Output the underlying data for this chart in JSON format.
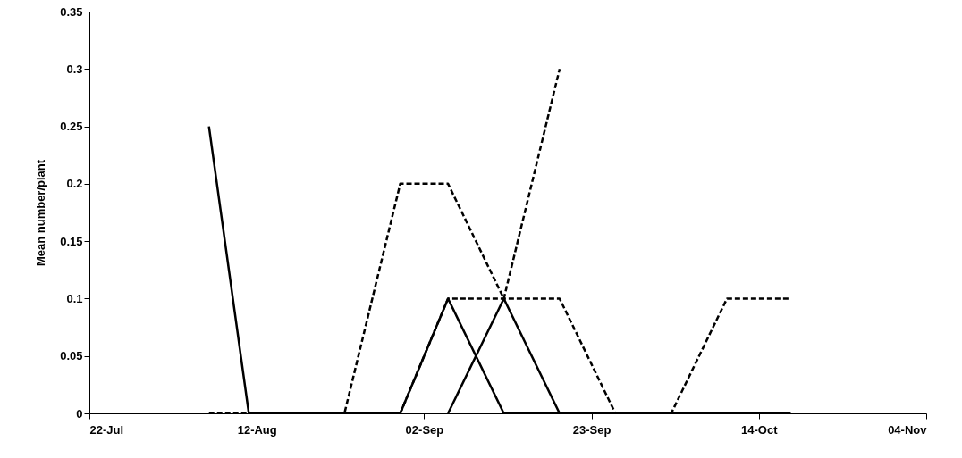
{
  "chart_data": {
    "type": "line",
    "ylabel": "Mean number/plant",
    "xlim": [
      "--07-22",
      "--11-04"
    ],
    "xticks": [
      {
        "value": "--07-22",
        "label": "22-Jul"
      },
      {
        "value": "--08-12",
        "label": "12-Aug"
      },
      {
        "value": "--09-02",
        "label": "02-Sep"
      },
      {
        "value": "--09-23",
        "label": "23-Sep"
      },
      {
        "value": "--10-14",
        "label": "14-Oct"
      },
      {
        "value": "--11-04",
        "label": "04-Nov"
      }
    ],
    "ylim": [
      0,
      0.35
    ],
    "yticks": [
      0,
      0.05,
      0.1,
      0.15,
      0.2,
      0.25,
      0.3,
      0.35
    ],
    "grid": false,
    "marker": "none",
    "series": [
      {
        "color": "#000000",
        "line_style": "solid",
        "x": [
          "--08-06",
          "--08-11",
          "--08-18",
          "--08-23",
          "--08-30",
          "--09-05",
          "--09-12",
          "--09-19",
          "--09-26",
          "--10-03",
          "--10-10",
          "--10-18"
        ],
        "values": [
          0.25,
          0,
          0,
          0,
          0,
          0.1,
          0,
          0,
          0,
          0,
          0,
          0
        ]
      },
      {
        "color": "#000000",
        "line_style": "solid",
        "x": [
          "--09-05",
          "--09-12",
          "--09-19"
        ],
        "values": [
          0,
          0.1,
          0
        ]
      },
      {
        "color": "#000000",
        "line_style": "dashed",
        "x": [
          "--08-06",
          "--08-11",
          "--08-18",
          "--08-23",
          "--08-30",
          "--09-05",
          "--09-12",
          "--09-19"
        ],
        "values": [
          0,
          0,
          0,
          0,
          0.2,
          0.2,
          0.1,
          0.3
        ]
      },
      {
        "color": "#000000",
        "line_style": "dashed",
        "x": [
          "--08-30",
          "--09-05",
          "--09-12",
          "--09-19",
          "--09-26",
          "--10-03",
          "--10-10",
          "--10-18"
        ],
        "values": [
          0,
          0.1,
          0.1,
          0.1,
          0,
          0,
          0.1,
          0.1
        ]
      }
    ]
  }
}
